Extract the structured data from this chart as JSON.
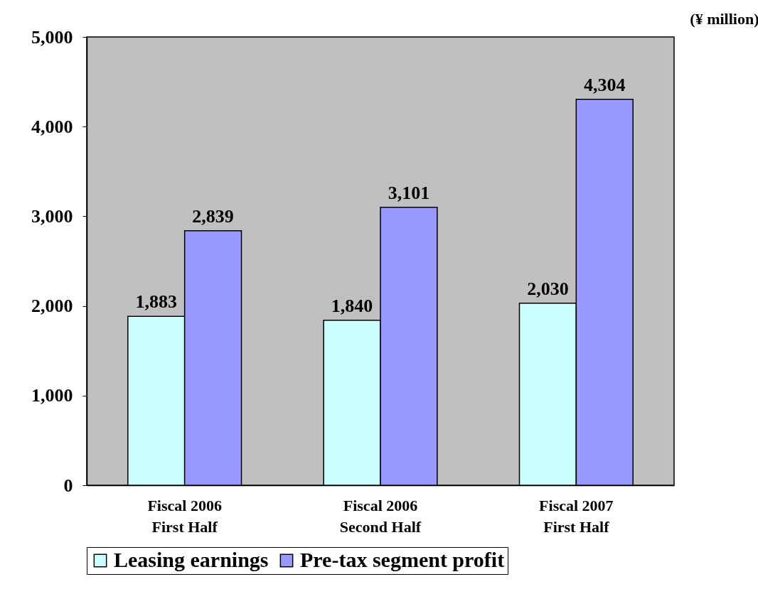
{
  "chart_data": {
    "type": "bar",
    "ylabel": "(¥ million)",
    "categories": [
      "Fiscal 2006\nFirst Half",
      "Fiscal 2006\nSecond Half",
      "Fiscal 2007\nFirst Half"
    ],
    "series": [
      {
        "name": "Leasing earnings",
        "color": "#ccffff",
        "values": [
          1883,
          1840,
          2030
        ],
        "value_labels": [
          "1,883",
          "1,840",
          "2,030"
        ]
      },
      {
        "name": "Pre-tax segment profit",
        "color": "#9999ff",
        "values": [
          2839,
          3101,
          4304
        ],
        "value_labels": [
          "2,839",
          "3,101",
          "4,304"
        ]
      }
    ],
    "ylim": [
      0,
      5000
    ],
    "yticks": [
      0,
      {
        "value": 1000,
        "label": "1,000"
      },
      {
        "value": 2000,
        "label": "2,000"
      },
      {
        "value": 3000,
        "label": "3,000"
      },
      {
        "value": 4000,
        "label": "4,000"
      },
      {
        "value": 5000,
        "label": "5,000"
      }
    ],
    "grid": false,
    "legend": "bottom"
  }
}
